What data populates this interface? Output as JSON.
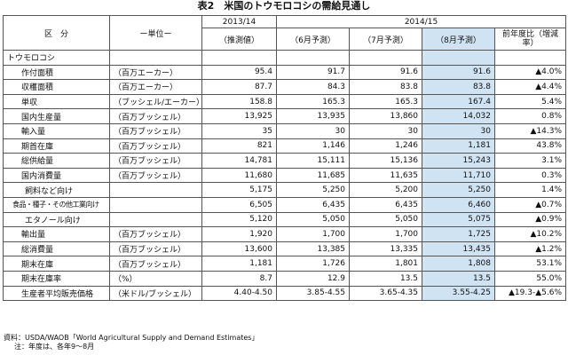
{
  "title": "表2　米国のトウモロコシの需給見通し",
  "header": {
    "category": "区　分",
    "unit": "ー単位ー",
    "season1": "2013/14",
    "season2": "2014/15",
    "col_est": "（推測値）",
    "col_jun": "（6月予測）",
    "col_jul": "（7月予測）",
    "col_aug": "（8月予測）",
    "col_yoy": "前年度比（増減率）"
  },
  "section_label": "トウモロコシ",
  "rows": [
    {
      "label": "作付面積",
      "unit": "（百万エーカー）",
      "v1": "95.4",
      "v2": "91.7",
      "v3": "91.6",
      "v4": "91.6",
      "v5": "▲4.0%"
    },
    {
      "label": "収穫面積",
      "unit": "（百万エーカー）",
      "v1": "87.7",
      "v2": "84.3",
      "v3": "83.8",
      "v4": "83.8",
      "v5": "▲4.4%"
    },
    {
      "label": "単収",
      "unit": "（ブッシェル/エーカー）",
      "v1": "158.8",
      "v2": "165.3",
      "v3": "165.3",
      "v4": "167.4",
      "v5": "5.4%"
    },
    {
      "label": "国内生産量",
      "unit": "（百万ブッシェル）",
      "v1": "13,925",
      "v2": "13,935",
      "v3": "13,860",
      "v4": "14,032",
      "v5": "0.8%"
    },
    {
      "label": "輸入量",
      "unit": "（百万ブッシェル）",
      "v1": "35",
      "v2": "30",
      "v3": "30",
      "v4": "30",
      "v5": "▲14.3%"
    },
    {
      "label": "期首在庫",
      "unit": "（百万ブッシェル）",
      "v1": "821",
      "v2": "1,146",
      "v3": "1,246",
      "v4": "1,181",
      "v5": "43.8%"
    },
    {
      "label": "総供給量",
      "unit": "（百万ブッシェル）",
      "v1": "14,781",
      "v2": "15,111",
      "v3": "15,136",
      "v4": "15,243",
      "v5": "3.1%"
    },
    {
      "label": "国内消費量",
      "unit": "（百万ブッシェル）",
      "v1": "11,680",
      "v2": "11,685",
      "v3": "11,635",
      "v4": "11,710",
      "v5": "0.3%"
    },
    {
      "label": "飼料など向け",
      "unit": "",
      "v1": "5,175",
      "v2": "5,250",
      "v3": "5,200",
      "v4": "5,250",
      "v5": "1.4%"
    },
    {
      "label": "食品・種子・その他工業向け",
      "unit": "",
      "v1": "6,505",
      "v2": "6,435",
      "v3": "6,435",
      "v4": "6,460",
      "v5": "▲0.7%"
    },
    {
      "label": "エタノール向け",
      "unit": "",
      "v1": "5,120",
      "v2": "5,050",
      "v3": "5,050",
      "v4": "5,075",
      "v5": "▲0.9%"
    },
    {
      "label": "輸出量",
      "unit": "（百万ブッシェル）",
      "v1": "1,920",
      "v2": "1,700",
      "v3": "1,700",
      "v4": "1,725",
      "v5": "▲10.2%"
    },
    {
      "label": "総消費量",
      "unit": "（百万ブッシェル）",
      "v1": "13,600",
      "v2": "13,385",
      "v3": "13,335",
      "v4": "13,435",
      "v5": "▲1.2%"
    },
    {
      "label": "期末在庫",
      "unit": "（百万ブッシェル）",
      "v1": "1,181",
      "v2": "1,726",
      "v3": "1,801",
      "v4": "1,808",
      "v5": "53.1%"
    },
    {
      "label": "期末在庫率",
      "unit": "（%）",
      "v1": "8.7",
      "v2": "12.9",
      "v3": "13.5",
      "v4": "13.5",
      "v5": "55.0%"
    },
    {
      "label": "生産者平均販売価格",
      "unit": "（米ドル/ブッシェル）",
      "v1": "4.40-4.50",
      "v2": "3.85-4.55",
      "v3": "3.65-4.35",
      "v4": "3.55-4.25",
      "v5": "▲19.3-▲5.6%"
    }
  ],
  "notes": {
    "source": "資料：USDA/WAOB「World Agricultural Supply and Demand Estimates」",
    "note": "注：年度は、各年9～8月"
  },
  "colors": {
    "highlight": "#cfe3f3",
    "border": "#555555"
  }
}
